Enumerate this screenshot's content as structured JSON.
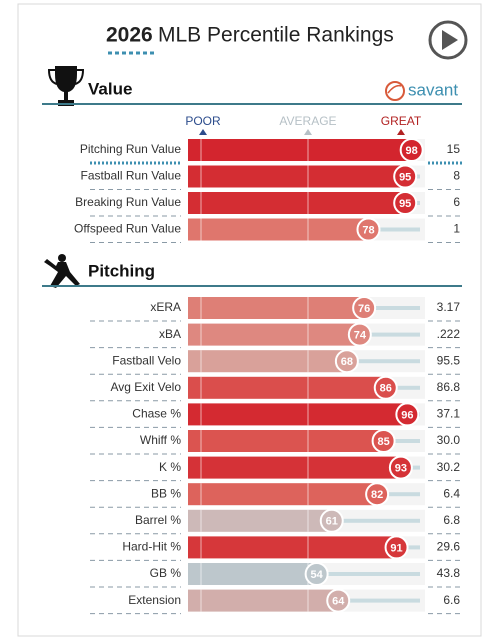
{
  "header": {
    "year": "2026",
    "title": "MLB Percentile Rankings",
    "logo": "savant"
  },
  "scale": [
    "POOR",
    "AVERAGE",
    "GREAT"
  ],
  "sections": [
    {
      "title": "Value",
      "rows": [
        {
          "label": "Pitching Run Value",
          "percentile": 98,
          "stat": "15"
        },
        {
          "label": "Fastball Run Value",
          "percentile": 95,
          "stat": "8"
        },
        {
          "label": "Breaking Run Value",
          "percentile": 95,
          "stat": "6"
        },
        {
          "label": "Offspeed Run Value",
          "percentile": 78,
          "stat": "1"
        }
      ]
    },
    {
      "title": "Pitching",
      "rows": [
        {
          "label": "xERA",
          "percentile": 76,
          "stat": "3.17"
        },
        {
          "label": "xBA",
          "percentile": 74,
          "stat": ".222"
        },
        {
          "label": "Fastball Velo",
          "percentile": 68,
          "stat": "95.5"
        },
        {
          "label": "Avg Exit Velo",
          "percentile": 86,
          "stat": "86.8"
        },
        {
          "label": "Chase %",
          "percentile": 96,
          "stat": "37.1"
        },
        {
          "label": "Whiff %",
          "percentile": 85,
          "stat": "30.0"
        },
        {
          "label": "K %",
          "percentile": 93,
          "stat": "30.2"
        },
        {
          "label": "BB %",
          "percentile": 82,
          "stat": "6.4"
        },
        {
          "label": "Barrel %",
          "percentile": 61,
          "stat": "6.8"
        },
        {
          "label": "Hard-Hit %",
          "percentile": 91,
          "stat": "29.6"
        },
        {
          "label": "GB %",
          "percentile": 54,
          "stat": "43.8"
        },
        {
          "label": "Extension",
          "percentile": 64,
          "stat": "6.6"
        }
      ]
    }
  ]
}
